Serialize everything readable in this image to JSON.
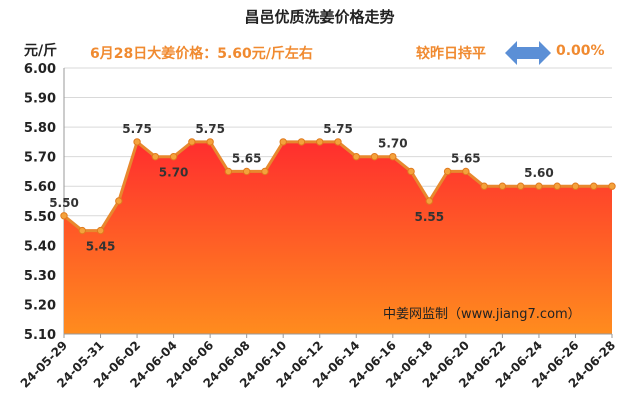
{
  "title": "昌邑优质洗姜价格走势",
  "unit_label": "元/斤",
  "price_note": "6月28日大姜价格：5.60元/斤左右",
  "compare_label": "较昨日持平",
  "compare_value": "0.00%",
  "watermark": "中姜网监制（www.jiang7.com）",
  "colors": {
    "accent": "#f08a30",
    "line": "#e8882e",
    "fill_top": "#ff3030",
    "fill_bottom": "#ff8a1e",
    "arrow": "#5b8fd6"
  },
  "chart_data": {
    "type": "area",
    "title": "昌邑优质洗姜价格走势",
    "ylabel": "元/斤",
    "ylim": [
      5.1,
      6.0
    ],
    "yticks": [
      "6.00",
      "5.90",
      "5.80",
      "5.70",
      "5.60",
      "5.50",
      "5.40",
      "5.30",
      "5.20",
      "5.10"
    ],
    "x": [
      "24-05-29",
      "24-05-30",
      "24-05-31",
      "24-06-01",
      "24-06-02",
      "24-06-03",
      "24-06-04",
      "24-06-05",
      "24-06-06",
      "24-06-07",
      "24-06-08",
      "24-06-09",
      "24-06-10",
      "24-06-11",
      "24-06-12",
      "24-06-13",
      "24-06-14",
      "24-06-15",
      "24-06-16",
      "24-06-17",
      "24-06-18",
      "24-06-19",
      "24-06-20",
      "24-06-21",
      "24-06-22",
      "24-06-23",
      "24-06-24",
      "24-06-25",
      "24-06-26",
      "24-06-27",
      "24-06-28"
    ],
    "values": [
      5.5,
      5.45,
      5.45,
      5.55,
      5.75,
      5.7,
      5.7,
      5.75,
      5.75,
      5.65,
      5.65,
      5.65,
      5.75,
      5.75,
      5.75,
      5.75,
      5.7,
      5.7,
      5.7,
      5.65,
      5.55,
      5.65,
      5.65,
      5.6,
      5.6,
      5.6,
      5.6,
      5.6,
      5.6,
      5.6,
      5.6
    ],
    "xtick_labels": [
      "24-05-29",
      "24-05-31",
      "24-06-02",
      "24-06-04",
      "24-06-06",
      "24-06-08",
      "24-06-10",
      "24-06-12",
      "24-06-14",
      "24-06-16",
      "24-06-18",
      "24-06-20",
      "24-06-22",
      "24-06-24",
      "24-06-26",
      "24-06-28"
    ],
    "data_labels": [
      {
        "x": "24-05-29",
        "text": "5.50"
      },
      {
        "x": "24-05-31",
        "text": "5.45"
      },
      {
        "x": "24-06-02",
        "text": "5.75"
      },
      {
        "x": "24-06-04",
        "text": "5.70"
      },
      {
        "x": "24-06-06",
        "text": "5.75"
      },
      {
        "x": "24-06-08",
        "text": "5.65"
      },
      {
        "x": "24-06-13",
        "text": "5.75"
      },
      {
        "x": "24-06-16",
        "text": "5.70"
      },
      {
        "x": "24-06-18",
        "text": "5.55"
      },
      {
        "x": "24-06-20",
        "text": "5.65"
      },
      {
        "x": "24-06-24",
        "text": "5.60"
      }
    ],
    "grid": true
  }
}
